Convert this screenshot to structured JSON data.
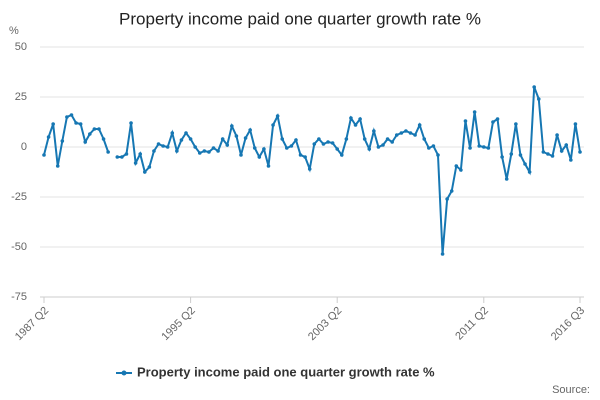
{
  "chart_data": {
    "type": "line",
    "title": "Property income paid one quarter growth rate %",
    "y_unit": "%",
    "source": "Source:",
    "categories": [
      "1987 Q2",
      null,
      null,
      null,
      null,
      null,
      null,
      null,
      null,
      null,
      null,
      null,
      null,
      null,
      null,
      null,
      null,
      null,
      null,
      null,
      null,
      null,
      null,
      null,
      null,
      null,
      null,
      null,
      null,
      null,
      null,
      null,
      "1995 Q2",
      null,
      null,
      null,
      null,
      null,
      null,
      null,
      null,
      null,
      null,
      null,
      null,
      null,
      null,
      null,
      null,
      null,
      null,
      null,
      null,
      null,
      null,
      null,
      null,
      null,
      null,
      null,
      null,
      null,
      null,
      null,
      "2003 Q2",
      null,
      null,
      null,
      null,
      null,
      null,
      null,
      null,
      null,
      null,
      null,
      null,
      null,
      null,
      null,
      null,
      null,
      null,
      null,
      null,
      null,
      null,
      null,
      null,
      null,
      null,
      null,
      null,
      null,
      null,
      null,
      "2011 Q2",
      null,
      null,
      null,
      null,
      null,
      null,
      null,
      null,
      null,
      null,
      null,
      null,
      null,
      null,
      null,
      null,
      null,
      null,
      null,
      null,
      "2016 Q3"
    ],
    "series": [
      {
        "name": "Property income paid one quarter growth rate %",
        "color": "#1677b3",
        "values": [
          -4,
          5,
          11.5,
          -9.5,
          3,
          15,
          16,
          12,
          11.5,
          2.5,
          6.5,
          9,
          9,
          4,
          -2.5,
          null,
          -5,
          -5,
          -3.5,
          12,
          -8,
          -3.5,
          -12.5,
          -10,
          -2,
          1.5,
          0.5,
          0,
          7,
          -2,
          3.5,
          7,
          4,
          0,
          -3,
          -2,
          -2.5,
          -0.5,
          -2,
          4,
          1,
          10.5,
          5.5,
          -4,
          4.5,
          8.5,
          -0.5,
          -5,
          -1,
          -9.5,
          11,
          15.5,
          4,
          -0.5,
          0.5,
          3.5,
          -4,
          -5,
          -11,
          1.5,
          4,
          1.5,
          2.5,
          2,
          -1,
          -4,
          4,
          14.5,
          11,
          14,
          4,
          -1,
          8,
          0,
          1,
          4,
          2.5,
          6,
          7,
          8,
          7,
          6,
          11,
          4,
          -0.5,
          0.5,
          -4,
          -53.5,
          -26,
          -22,
          -9.5,
          -11.5,
          13,
          -0.5,
          17.5,
          0.5,
          0,
          -0.5,
          12.5,
          14,
          -5,
          -16,
          -3.5,
          11.5,
          -4,
          -8.5,
          -12.5,
          30,
          24,
          -2.5,
          -3.5,
          -4.5,
          6,
          -2,
          1,
          -6.5,
          11.5,
          -2.5
        ]
      }
    ],
    "ylim": [
      -75,
      50
    ],
    "yticks": [
      -75,
      -50,
      -25,
      0,
      25,
      50
    ],
    "grid": true
  }
}
